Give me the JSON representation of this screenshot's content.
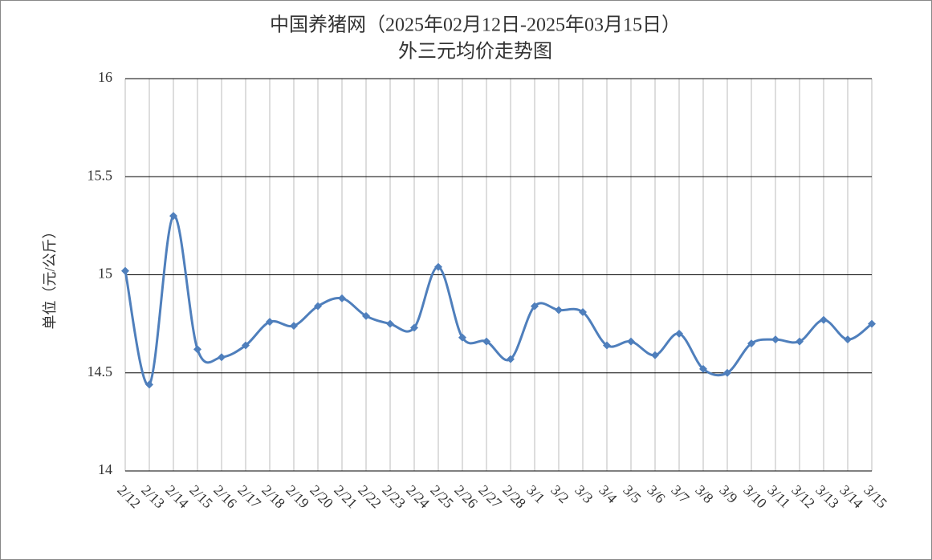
{
  "chart_data": {
    "type": "line",
    "title": "中国养猪网（2025年02月12日-2025年03月15日）",
    "subtitle": "外三元均价走势图",
    "y_label": "单位（元/公斤）",
    "categories": [
      "2/12",
      "2/13",
      "2/14",
      "2/15",
      "2/16",
      "2/17",
      "2/18",
      "2/19",
      "2/20",
      "2/21",
      "2/22",
      "2/23",
      "2/24",
      "2/25",
      "2/26",
      "2/27",
      "2/28",
      "3/1",
      "3/2",
      "3/3",
      "3/4",
      "3/5",
      "3/6",
      "3/7",
      "3/8",
      "3/9",
      "3/10",
      "3/11",
      "3/12",
      "3/13",
      "3/14",
      "3/15"
    ],
    "values": [
      15.02,
      14.44,
      15.3,
      14.62,
      14.58,
      14.64,
      14.76,
      14.74,
      14.84,
      14.88,
      14.79,
      14.75,
      14.73,
      15.04,
      14.68,
      14.66,
      14.57,
      14.84,
      14.82,
      14.81,
      14.64,
      14.66,
      14.59,
      14.7,
      14.52,
      14.5,
      14.65,
      14.67,
      14.66,
      14.77,
      14.67,
      14.75
    ],
    "color": "#4f7fbc",
    "ylim": [
      14,
      16
    ],
    "yticks": [
      14,
      14.5,
      15,
      15.5,
      16
    ],
    "grid": true
  }
}
